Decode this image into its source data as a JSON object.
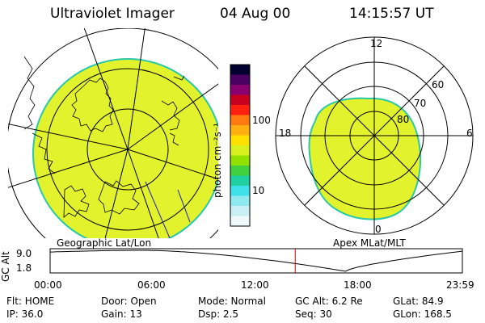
{
  "header": {
    "instrument": "Ultraviolet Imager",
    "date": "04 Aug 00",
    "time": "14:15:57 UT"
  },
  "left_map": {
    "caption": "Geographic Lat/Lon"
  },
  "right_map": {
    "caption": "Apex MLat/MLT",
    "mlt_labels": [
      "12",
      "18",
      "6",
      "0"
    ],
    "lat_labels": [
      "60",
      "70",
      "80"
    ]
  },
  "colorbar": {
    "unit_label": "photon cm⁻²s⁻¹",
    "tick_labels": [
      "100",
      "10"
    ],
    "colors": [
      "#000030",
      "#4a0060",
      "#8a0070",
      "#c80020",
      "#ff2010",
      "#ff7a10",
      "#ffb010",
      "#ffe000",
      "#d8f020",
      "#90e000",
      "#40d040",
      "#20d0a0",
      "#40e0e8",
      "#90e8f0",
      "#c8f0f4",
      "#eef8fa"
    ]
  },
  "orbit_plot": {
    "ylabel": "GC Alt",
    "y_ticks": [
      "9.0",
      "1.8"
    ],
    "x_ticks": [
      "00:00",
      "06:00",
      "12:00",
      "18:00",
      "23:59"
    ],
    "current_time_hours": 14.27,
    "curve_color": "#000000",
    "marker_color": "#e00000"
  },
  "info": {
    "flt": "Flt: HOME",
    "ip": "IP: 36.0",
    "door": "Door: Open",
    "gain": "Gain: 13",
    "mode": "Mode: Normal",
    "dsp": "Dsp:     2.5",
    "gc_alt": "GC Alt: 6.2 Re",
    "seq": "Seq: 30",
    "glat": "GLat:  84.9",
    "glon": "GLon: 168.5"
  },
  "colors": {
    "aurora": "#e2f22c",
    "aurora_edge": "#28c8a8"
  }
}
